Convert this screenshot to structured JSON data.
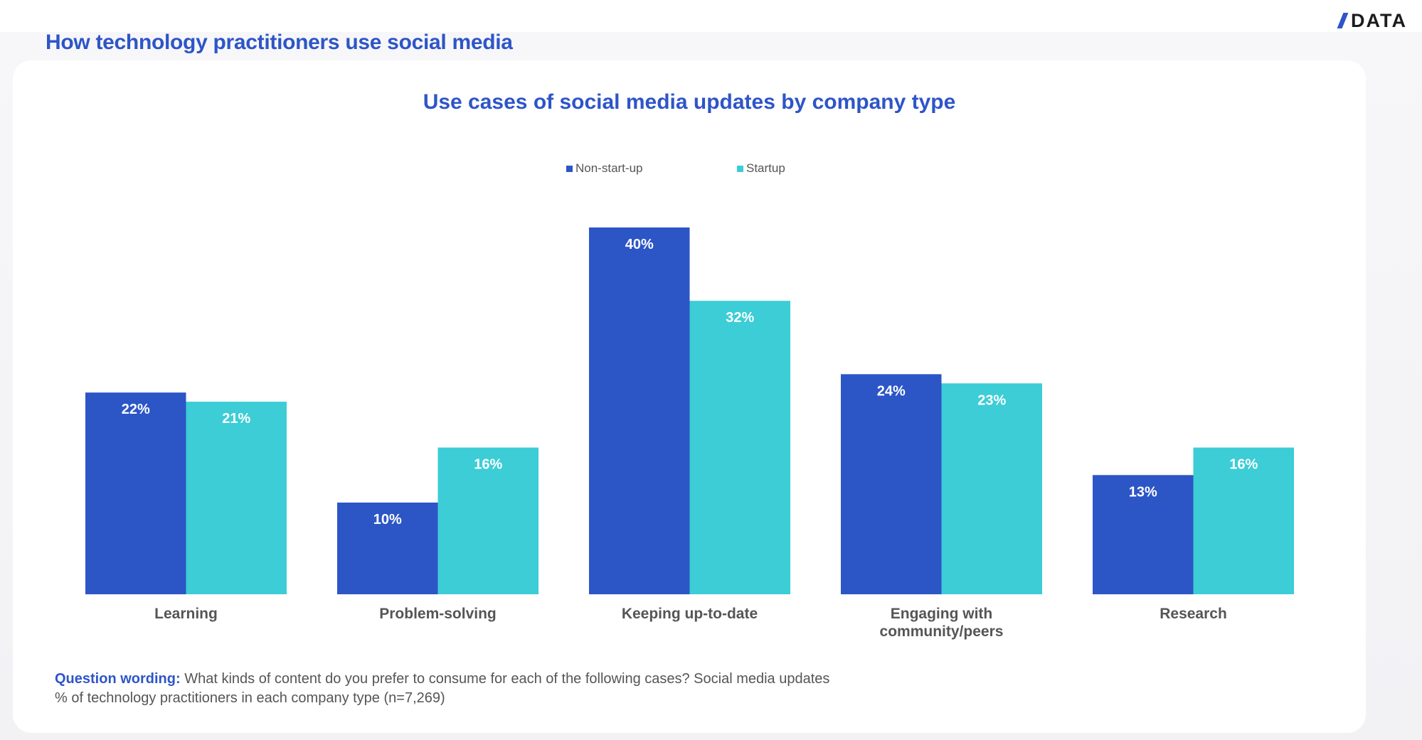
{
  "page": {
    "title": "How technology practitioners use social media",
    "logo_text": "DATA"
  },
  "colors": {
    "accent": "#2e55c8",
    "non_startup": "#2c55c6",
    "startup": "#3ccdd6",
    "label_text": "#555555",
    "bar_label": "#ffffff"
  },
  "footer": {
    "question_label": "Question wording:",
    "question_text": " What kinds of content do you prefer to consume for each of the following cases? Social media updates",
    "note": "% of technology practitioners in each company type (n=7,269)"
  },
  "chart_data": {
    "type": "bar",
    "title": "Use cases of social media updates by company type",
    "xlabel": "",
    "ylabel": "",
    "ylim": [
      0,
      40
    ],
    "grid": false,
    "legend_position": "top-center",
    "categories": [
      [
        "Learning"
      ],
      [
        "Problem-solving"
      ],
      [
        "Keeping up-to-date"
      ],
      [
        "Engaging with",
        "community/peers"
      ],
      [
        "Research"
      ]
    ],
    "series": [
      {
        "name": "Non-start-up",
        "color": "#2c55c6",
        "values": [
          22,
          10,
          40,
          24,
          13
        ],
        "labels": [
          "22%",
          "10%",
          "40%",
          "24%",
          "13%"
        ]
      },
      {
        "name": "Startup",
        "color": "#3ccdd6",
        "values": [
          21,
          16,
          32,
          23,
          16
        ],
        "labels": [
          "21%",
          "16%",
          "32%",
          "23%",
          "16%"
        ]
      }
    ]
  }
}
